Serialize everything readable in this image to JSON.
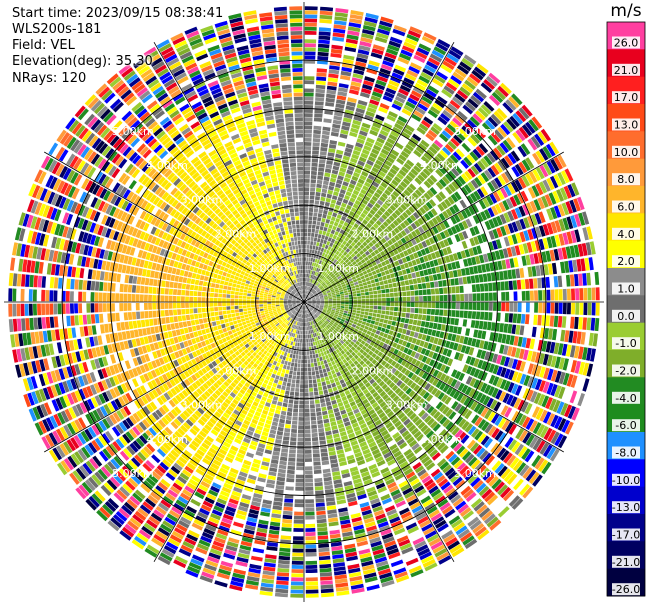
{
  "header": {
    "start_time": "Start time: 2023/09/15 08:38:41",
    "instrument": "WLS200s-181",
    "field": "Field: VEL",
    "elevation": "Elevation(deg): 35.30",
    "nrays": "NRays: 120"
  },
  "chart_data": {
    "type": "heatmap",
    "projection": "polar-ppi",
    "field": "VEL",
    "units": "m/s",
    "nrays": 120,
    "elevation_deg": 35.3,
    "range_rings_km": [
      1.0,
      2.0,
      3.0,
      4.0,
      5.0
    ],
    "ring_labels": [
      "1.00km",
      "2.00km",
      "3.00km",
      "4.00km",
      "5.00km"
    ],
    "azimuth_lines_deg": [
      0,
      30,
      60,
      90,
      120,
      150,
      180,
      210,
      240,
      270,
      300,
      330
    ],
    "max_range_km": 6.2,
    "colorbar": {
      "label": "m/s",
      "ticks": [
        "26.0",
        "21.0",
        "17.0",
        "13.0",
        "10.0",
        "8.0",
        "6.0",
        "4.0",
        "2.0",
        "1.0",
        "0.0",
        "-1.0",
        "-2.0",
        "-4.0",
        "-6.0",
        "-8.0",
        "-10.0",
        "-13.0",
        "-17.0",
        "-21.0",
        "-26.0",
        "-30.0"
      ],
      "colors": [
        "#ff3fa0",
        "#e8001e",
        "#ff1f1f",
        "#ff4a17",
        "#ff6d2d",
        "#ff9a3a",
        "#ffb52b",
        "#ffe600",
        "#ffff00",
        "#8c8c8c",
        "#6e6e6e",
        "#9acd32",
        "#7fae2a",
        "#228b22",
        "#1e8c1e",
        "#1e90ff",
        "#0000ff",
        "#0000cd",
        "#00008b",
        "#000060",
        "#000040"
      ]
    },
    "pattern": {
      "approaching_sector": "west / south-west, +1 to +6 m/s (yellow/orange)",
      "receding_sector": "east / north-east, -1 to -6 m/s (green)",
      "outer_noise_beyond_km": 4.0
    }
  }
}
